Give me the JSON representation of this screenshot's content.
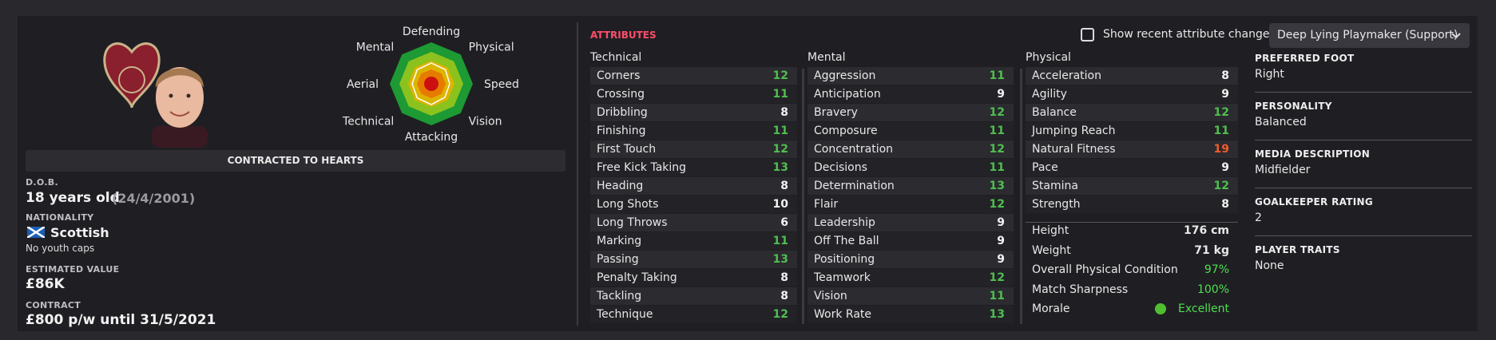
{
  "player": {
    "contract_banner": "CONTRACTED TO HEARTS",
    "dob": {
      "label": "D.O.B.",
      "age": "18 years old",
      "date": "(24/4/2001)"
    },
    "nationality": {
      "label": "NATIONALITY",
      "country": "Scottish",
      "caps": "No youth caps"
    },
    "estimated_value": {
      "label": "ESTIMATED VALUE",
      "value": "£86K"
    },
    "contract": {
      "label": "CONTRACT",
      "value": "£800 p/w until 31/5/2021"
    }
  },
  "radar": {
    "labels": [
      "Defending",
      "Physical",
      "Speed",
      "Vision",
      "Attacking",
      "Technical",
      "Aerial",
      "Mental"
    ]
  },
  "attributes": {
    "title": "ATTRIBUTES",
    "show_changes": "Show recent attribute changes",
    "role": "Deep Lying Playmaker (Support)",
    "groups": [
      {
        "name": "Technical",
        "items": [
          {
            "name": "Corners",
            "value": 12
          },
          {
            "name": "Crossing",
            "value": 11
          },
          {
            "name": "Dribbling",
            "value": 8
          },
          {
            "name": "Finishing",
            "value": 11
          },
          {
            "name": "First Touch",
            "value": 12
          },
          {
            "name": "Free Kick Taking",
            "value": 13
          },
          {
            "name": "Heading",
            "value": 8
          },
          {
            "name": "Long Shots",
            "value": 10
          },
          {
            "name": "Long Throws",
            "value": 6
          },
          {
            "name": "Marking",
            "value": 11
          },
          {
            "name": "Passing",
            "value": 13
          },
          {
            "name": "Penalty Taking",
            "value": 8
          },
          {
            "name": "Tackling",
            "value": 8
          },
          {
            "name": "Technique",
            "value": 12
          }
        ]
      },
      {
        "name": "Mental",
        "items": [
          {
            "name": "Aggression",
            "value": 11
          },
          {
            "name": "Anticipation",
            "value": 9
          },
          {
            "name": "Bravery",
            "value": 12
          },
          {
            "name": "Composure",
            "value": 11
          },
          {
            "name": "Concentration",
            "value": 12
          },
          {
            "name": "Decisions",
            "value": 11
          },
          {
            "name": "Determination",
            "value": 13
          },
          {
            "name": "Flair",
            "value": 12
          },
          {
            "name": "Leadership",
            "value": 9
          },
          {
            "name": "Off The Ball",
            "value": 9
          },
          {
            "name": "Positioning",
            "value": 9
          },
          {
            "name": "Teamwork",
            "value": 12
          },
          {
            "name": "Vision",
            "value": 11
          },
          {
            "name": "Work Rate",
            "value": 13
          }
        ]
      },
      {
        "name": "Physical",
        "items": [
          {
            "name": "Acceleration",
            "value": 8
          },
          {
            "name": "Agility",
            "value": 9
          },
          {
            "name": "Balance",
            "value": 12
          },
          {
            "name": "Jumping Reach",
            "value": 11
          },
          {
            "name": "Natural Fitness",
            "value": 19
          },
          {
            "name": "Pace",
            "value": 9
          },
          {
            "name": "Stamina",
            "value": 12
          },
          {
            "name": "Strength",
            "value": 8
          }
        ]
      }
    ],
    "physical_extra": [
      {
        "name": "Height",
        "value": "176 cm"
      },
      {
        "name": "Weight",
        "value": "71 kg"
      },
      {
        "name": "Overall Physical Condition",
        "value": "97%"
      },
      {
        "name": "Match Sharpness",
        "value": "100%"
      },
      {
        "name": "Morale",
        "value": "Excellent"
      }
    ]
  },
  "details": [
    {
      "label": "PREFERRED FOOT",
      "value": "Right"
    },
    {
      "label": "PERSONALITY",
      "value": "Balanced"
    },
    {
      "label": "MEDIA DESCRIPTION",
      "value": "Midfielder"
    },
    {
      "label": "GOALKEEPER RATING",
      "value": 2
    },
    {
      "label": "PLAYER TRAITS",
      "value": "None"
    }
  ]
}
